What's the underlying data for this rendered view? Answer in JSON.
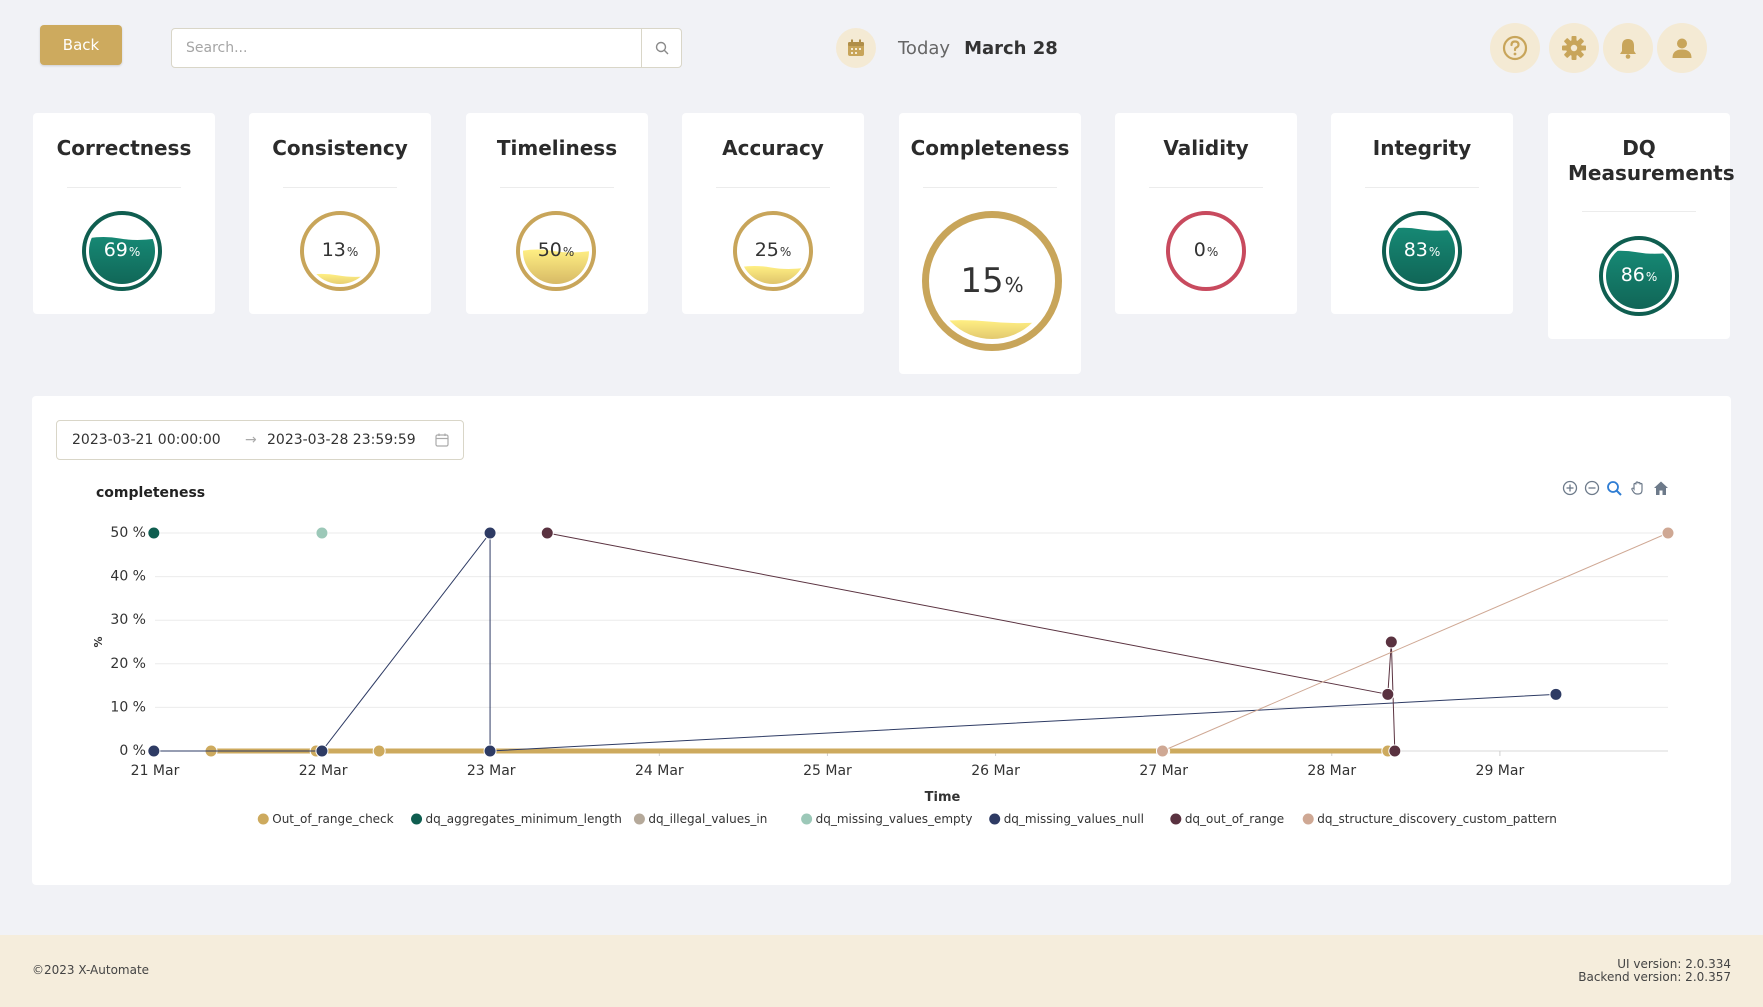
{
  "header": {
    "back_label": "Back",
    "search_placeholder": "Search...",
    "today_label": "Today",
    "date_value": "March 28",
    "icons": [
      "help-icon",
      "gear-icon",
      "bell-icon",
      "user-icon"
    ]
  },
  "metrics": [
    {
      "title": "Correctness",
      "value": 69,
      "unit": "%",
      "color": "#0f5e50"
    },
    {
      "title": "Consistency",
      "value": 13,
      "unit": "%",
      "color": "#c8a55a"
    },
    {
      "title": "Timeliness",
      "value": 50,
      "unit": "%",
      "color": "#c8a55a"
    },
    {
      "title": "Accuracy",
      "value": 25,
      "unit": "%",
      "color": "#c8a55a"
    },
    {
      "title": "Completeness",
      "value": 15,
      "unit": "%",
      "color": "#c8a55a"
    },
    {
      "title": "Validity",
      "value": 0,
      "unit": "%",
      "color": "#c84a5e"
    },
    {
      "title": "Integrity",
      "value": 83,
      "unit": "%",
      "color": "#0f5e50"
    },
    {
      "title": "DQ Measurements",
      "value": 86,
      "unit": "%",
      "color": "#0f5e50"
    }
  ],
  "range": {
    "from": "2023-03-21 00:00:00",
    "arrow": "→",
    "to": "2023-03-28 23:59:59"
  },
  "chart_data": {
    "type": "line",
    "title": "completeness",
    "xlabel": "Time",
    "ylabel": "%",
    "ylim": [
      0,
      50
    ],
    "xlim": [
      "2023-03-21",
      "2023-03-30"
    ],
    "x_ticks": [
      "21 Mar",
      "22 Mar",
      "23 Mar",
      "24 Mar",
      "25 Mar",
      "26 Mar",
      "27 Mar",
      "28 Mar",
      "29 Mar"
    ],
    "y_ticks": [
      "0 %",
      "10 %",
      "20 %",
      "30 %",
      "40 %",
      "50 %"
    ],
    "legend_position": "bottom",
    "grid": true,
    "series": [
      {
        "name": "Out_of_range_check",
        "color": "#cdaa5e",
        "points": [
          [
            "2023-03-21 08:00",
            0
          ],
          [
            "2023-03-21 23:00",
            0
          ],
          [
            "2023-03-22 08:00",
            0
          ],
          [
            "2023-03-27 00:00",
            0
          ],
          [
            "2023-03-28 08:00",
            0
          ]
        ]
      },
      {
        "name": "dq_aggregates_minimum_length",
        "color": "#0f5e50",
        "points": [
          [
            "2023-03-20 23:50",
            50
          ]
        ]
      },
      {
        "name": "dq_illegal_values_in",
        "color": "#b5a99a",
        "points": [
          [
            "2023-03-26 23:50",
            0
          ]
        ]
      },
      {
        "name": "dq_missing_values_empty",
        "color": "#9cc8b8",
        "points": [
          [
            "2023-03-21 23:50",
            50
          ]
        ]
      },
      {
        "name": "dq_missing_values_null",
        "color": "#2e3b64",
        "points": [
          [
            "2023-03-20 23:50",
            0
          ],
          [
            "2023-03-21 23:50",
            0
          ],
          [
            "2023-03-22 23:50",
            50
          ],
          [
            "2023-03-22 23:50",
            0
          ],
          [
            "2023-03-29 08:00",
            13
          ]
        ]
      },
      {
        "name": "dq_out_of_range",
        "color": "#5a3240",
        "points": [
          [
            "2023-03-23 08:00",
            50
          ],
          [
            "2023-03-28 08:00",
            13
          ],
          [
            "2023-03-28 08:30",
            25
          ],
          [
            "2023-03-28 09:00",
            0
          ]
        ]
      },
      {
        "name": "dq_structure_discovery_custom_pattern",
        "color": "#cfa894",
        "points": [
          [
            "2023-03-26 23:50",
            0
          ],
          [
            "2023-03-30 00:00",
            50
          ]
        ]
      }
    ]
  },
  "footer": {
    "copyright": "©2023 X-Automate",
    "ui_version": "UI version: 2.0.334",
    "backend_version": "Backend version: 2.0.357"
  }
}
